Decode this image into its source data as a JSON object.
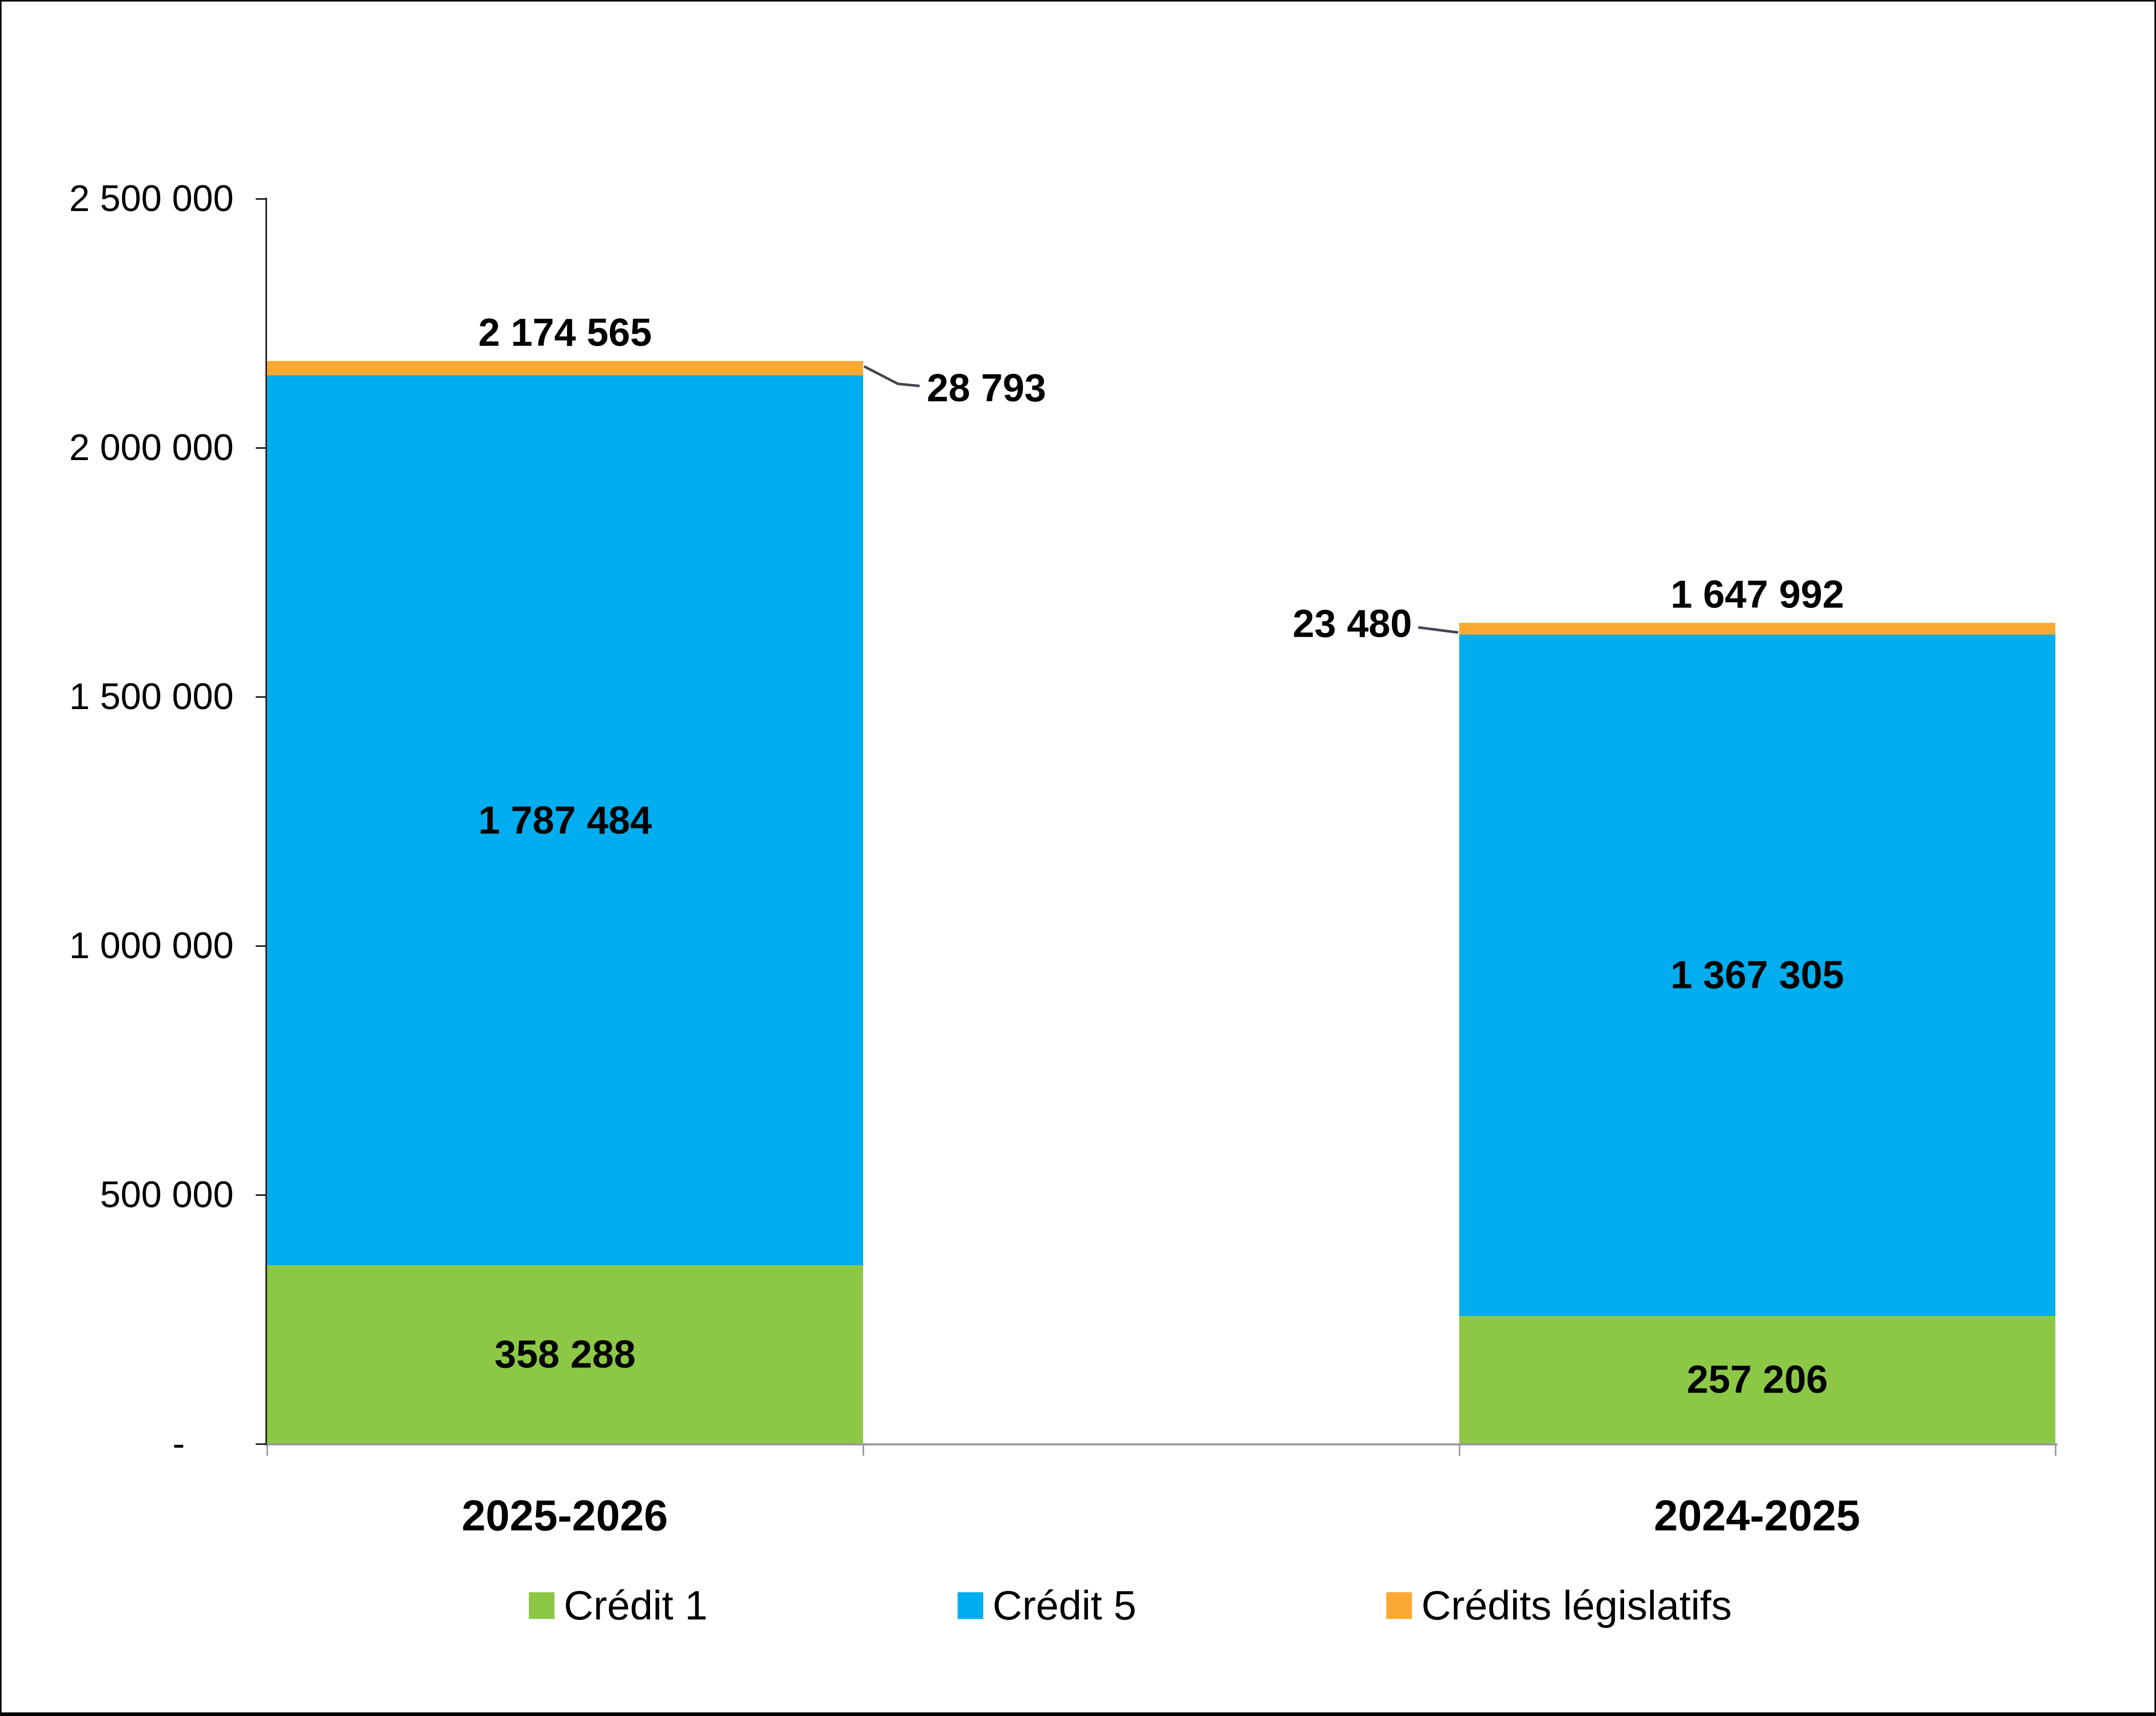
{
  "page": {
    "background": "#FFFFFF",
    "frame_color": "#000000"
  },
  "colors": {
    "axis_line": "#1A1A1A",
    "category_axis_line": "#999999",
    "leader_line": "#44474F",
    "label_text": "#000000",
    "series_green": "#8CC846",
    "series_blue": "#00AEEF",
    "series_orange": "#FAAA32"
  },
  "chart_data": {
    "type": "bar",
    "stacked": true,
    "title": "",
    "xlabel": "",
    "ylabel": "",
    "grid": false,
    "categories": [
      "2025-2026",
      "2024-2025"
    ],
    "series": [
      {
        "name": "Crédit 1",
        "color": "#8CC846",
        "values": [
          358288,
          257206
        ],
        "value_labels": [
          "358 288",
          "257 206"
        ],
        "labels_as_callout": false
      },
      {
        "name": "Crédit 5",
        "color": "#00AEEF",
        "values": [
          1787484,
          1367305
        ],
        "value_labels": [
          "1 787 484",
          "1 367 305"
        ],
        "labels_as_callout": false
      },
      {
        "name": "Crédits législatifs",
        "color": "#FAAA32",
        "values": [
          28793,
          23480
        ],
        "value_labels": [
          "28 793",
          "23 480"
        ],
        "labels_as_callout": true,
        "callout_sides": [
          "right",
          "left"
        ]
      }
    ],
    "totals": {
      "values": [
        2174565,
        1647992
      ],
      "labels": [
        "2 174 565",
        "1 647 992"
      ]
    },
    "y_axis": {
      "min": 0,
      "max": 2500000,
      "tick_interval": 500000,
      "tick_values": [
        2500000,
        2000000,
        1500000,
        1000000,
        500000,
        0
      ],
      "tick_labels": [
        "2 500 000",
        "2 000 000",
        "1 500 000",
        "1 000 000",
        "500 000",
        "-"
      ]
    },
    "legend": {
      "position": "bottom",
      "entries": [
        "Crédit 1",
        "Crédit 5",
        "Crédits législatifs"
      ]
    }
  }
}
